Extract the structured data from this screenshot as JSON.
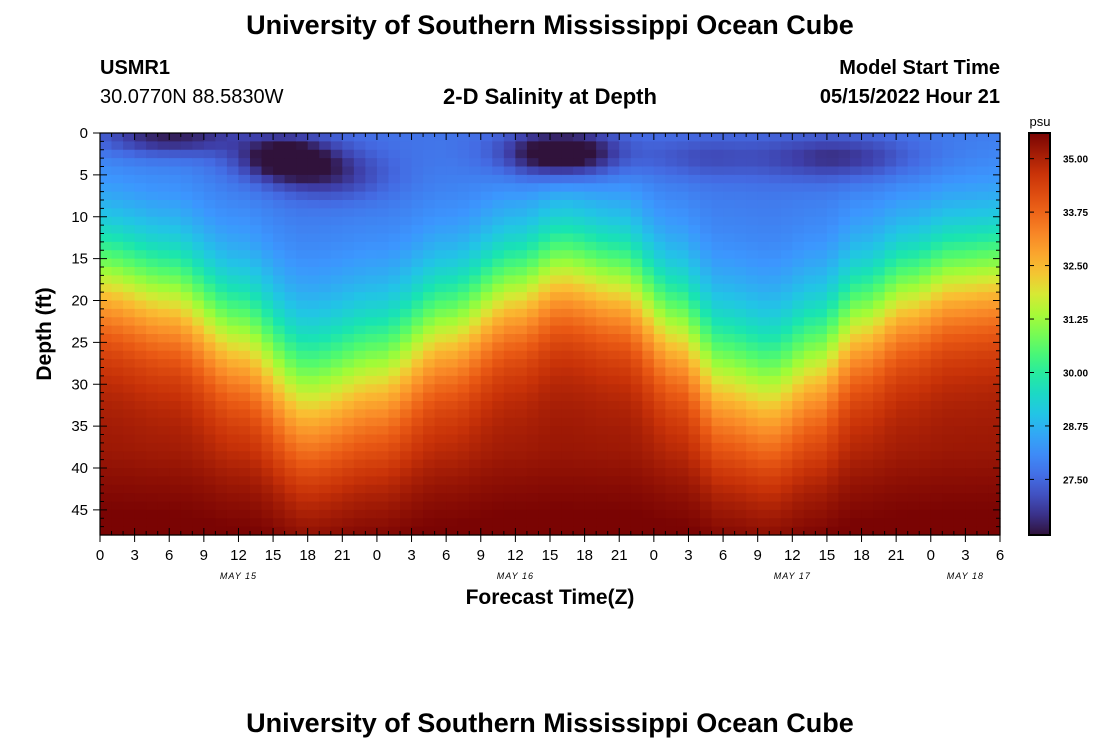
{
  "page": {
    "title_top": "University of Southern Mississippi Ocean Cube",
    "title_bottom": "University of Southern Mississippi Ocean Cube",
    "station_id": "USMR1",
    "coords": "30.0770N  88.5830W",
    "plot_title": "2-D Salinity at Depth",
    "model_start_label": "Model Start Time",
    "model_start_value": "05/15/2022 Hour 21"
  },
  "chart_data": {
    "type": "heatmap",
    "title": "2-D Salinity at Depth",
    "xlabel": "Forecast Time(Z)",
    "ylabel": "Depth (ft)",
    "x_range_hours": [
      0,
      78
    ],
    "y_range_ft": [
      0,
      48
    ],
    "x_ticks": [
      {
        "h": 0,
        "label": "0"
      },
      {
        "h": 3,
        "label": "3"
      },
      {
        "h": 6,
        "label": "6"
      },
      {
        "h": 9,
        "label": "9"
      },
      {
        "h": 12,
        "label": "12"
      },
      {
        "h": 15,
        "label": "15"
      },
      {
        "h": 18,
        "label": "18"
      },
      {
        "h": 21,
        "label": "21"
      },
      {
        "h": 24,
        "label": "0"
      },
      {
        "h": 27,
        "label": "3"
      },
      {
        "h": 30,
        "label": "6"
      },
      {
        "h": 33,
        "label": "9"
      },
      {
        "h": 36,
        "label": "12"
      },
      {
        "h": 39,
        "label": "15"
      },
      {
        "h": 42,
        "label": "18"
      },
      {
        "h": 45,
        "label": "21"
      },
      {
        "h": 48,
        "label": "0"
      },
      {
        "h": 51,
        "label": "3"
      },
      {
        "h": 54,
        "label": "6"
      },
      {
        "h": 57,
        "label": "9"
      },
      {
        "h": 60,
        "label": "12"
      },
      {
        "h": 63,
        "label": "15"
      },
      {
        "h": 66,
        "label": "18"
      },
      {
        "h": 69,
        "label": "21"
      },
      {
        "h": 72,
        "label": "0"
      },
      {
        "h": 75,
        "label": "3"
      },
      {
        "h": 78,
        "label": "6"
      }
    ],
    "date_labels": [
      {
        "h": 12,
        "label": "MAY 15"
      },
      {
        "h": 36,
        "label": "MAY 16"
      },
      {
        "h": 60,
        "label": "MAY 17"
      },
      {
        "h": 75,
        "label": "MAY 18"
      }
    ],
    "y_ticks": [
      0,
      5,
      10,
      15,
      20,
      25,
      30,
      35,
      40,
      45
    ],
    "colorbar": {
      "unit": "psu",
      "range": [
        26.2,
        35.6
      ],
      "ticks": [
        35.0,
        33.75,
        32.5,
        31.25,
        30.0,
        28.75,
        27.5
      ],
      "tick_labels": [
        "35.00",
        "33.75",
        "32.50",
        "31.25",
        "30.00",
        "28.75",
        "27.50"
      ]
    },
    "halocline_depth_ft": [
      {
        "h": 0,
        "d": 17
      },
      {
        "h": 6,
        "d": 19
      },
      {
        "h": 12,
        "d": 24
      },
      {
        "h": 18,
        "d": 30.5
      },
      {
        "h": 24,
        "d": 28
      },
      {
        "h": 30,
        "d": 23
      },
      {
        "h": 36,
        "d": 18.5
      },
      {
        "h": 40,
        "d": 16
      },
      {
        "h": 45,
        "d": 17.5
      },
      {
        "h": 50,
        "d": 23
      },
      {
        "h": 54,
        "d": 28.5
      },
      {
        "h": 58,
        "d": 30
      },
      {
        "h": 62,
        "d": 27
      },
      {
        "h": 66,
        "d": 22
      },
      {
        "h": 70,
        "d": 19
      },
      {
        "h": 74,
        "d": 17
      },
      {
        "h": 78,
        "d": 16.5
      }
    ],
    "surface_salinity_psu": 27.6,
    "deep_salinity_psu": 35.3,
    "fresh_lenses": [
      {
        "h": 6,
        "d": 0.5,
        "wh": 6,
        "wd": 2.2,
        "amp": 1.4
      },
      {
        "h": 16,
        "d": 3,
        "wh": 4,
        "wd": 2.6,
        "amp": 1.9
      },
      {
        "h": 20,
        "d": 5,
        "wh": 5,
        "wd": 3,
        "amp": 1.0
      },
      {
        "h": 40,
        "d": 2.5,
        "wh": 5,
        "wd": 2.8,
        "amp": 2.4
      },
      {
        "h": 64,
        "d": 3,
        "wh": 7,
        "wd": 2.6,
        "amp": 1.1
      },
      {
        "h": 52,
        "d": 3,
        "wh": 5,
        "wd": 2.5,
        "amp": 0.6
      }
    ]
  }
}
